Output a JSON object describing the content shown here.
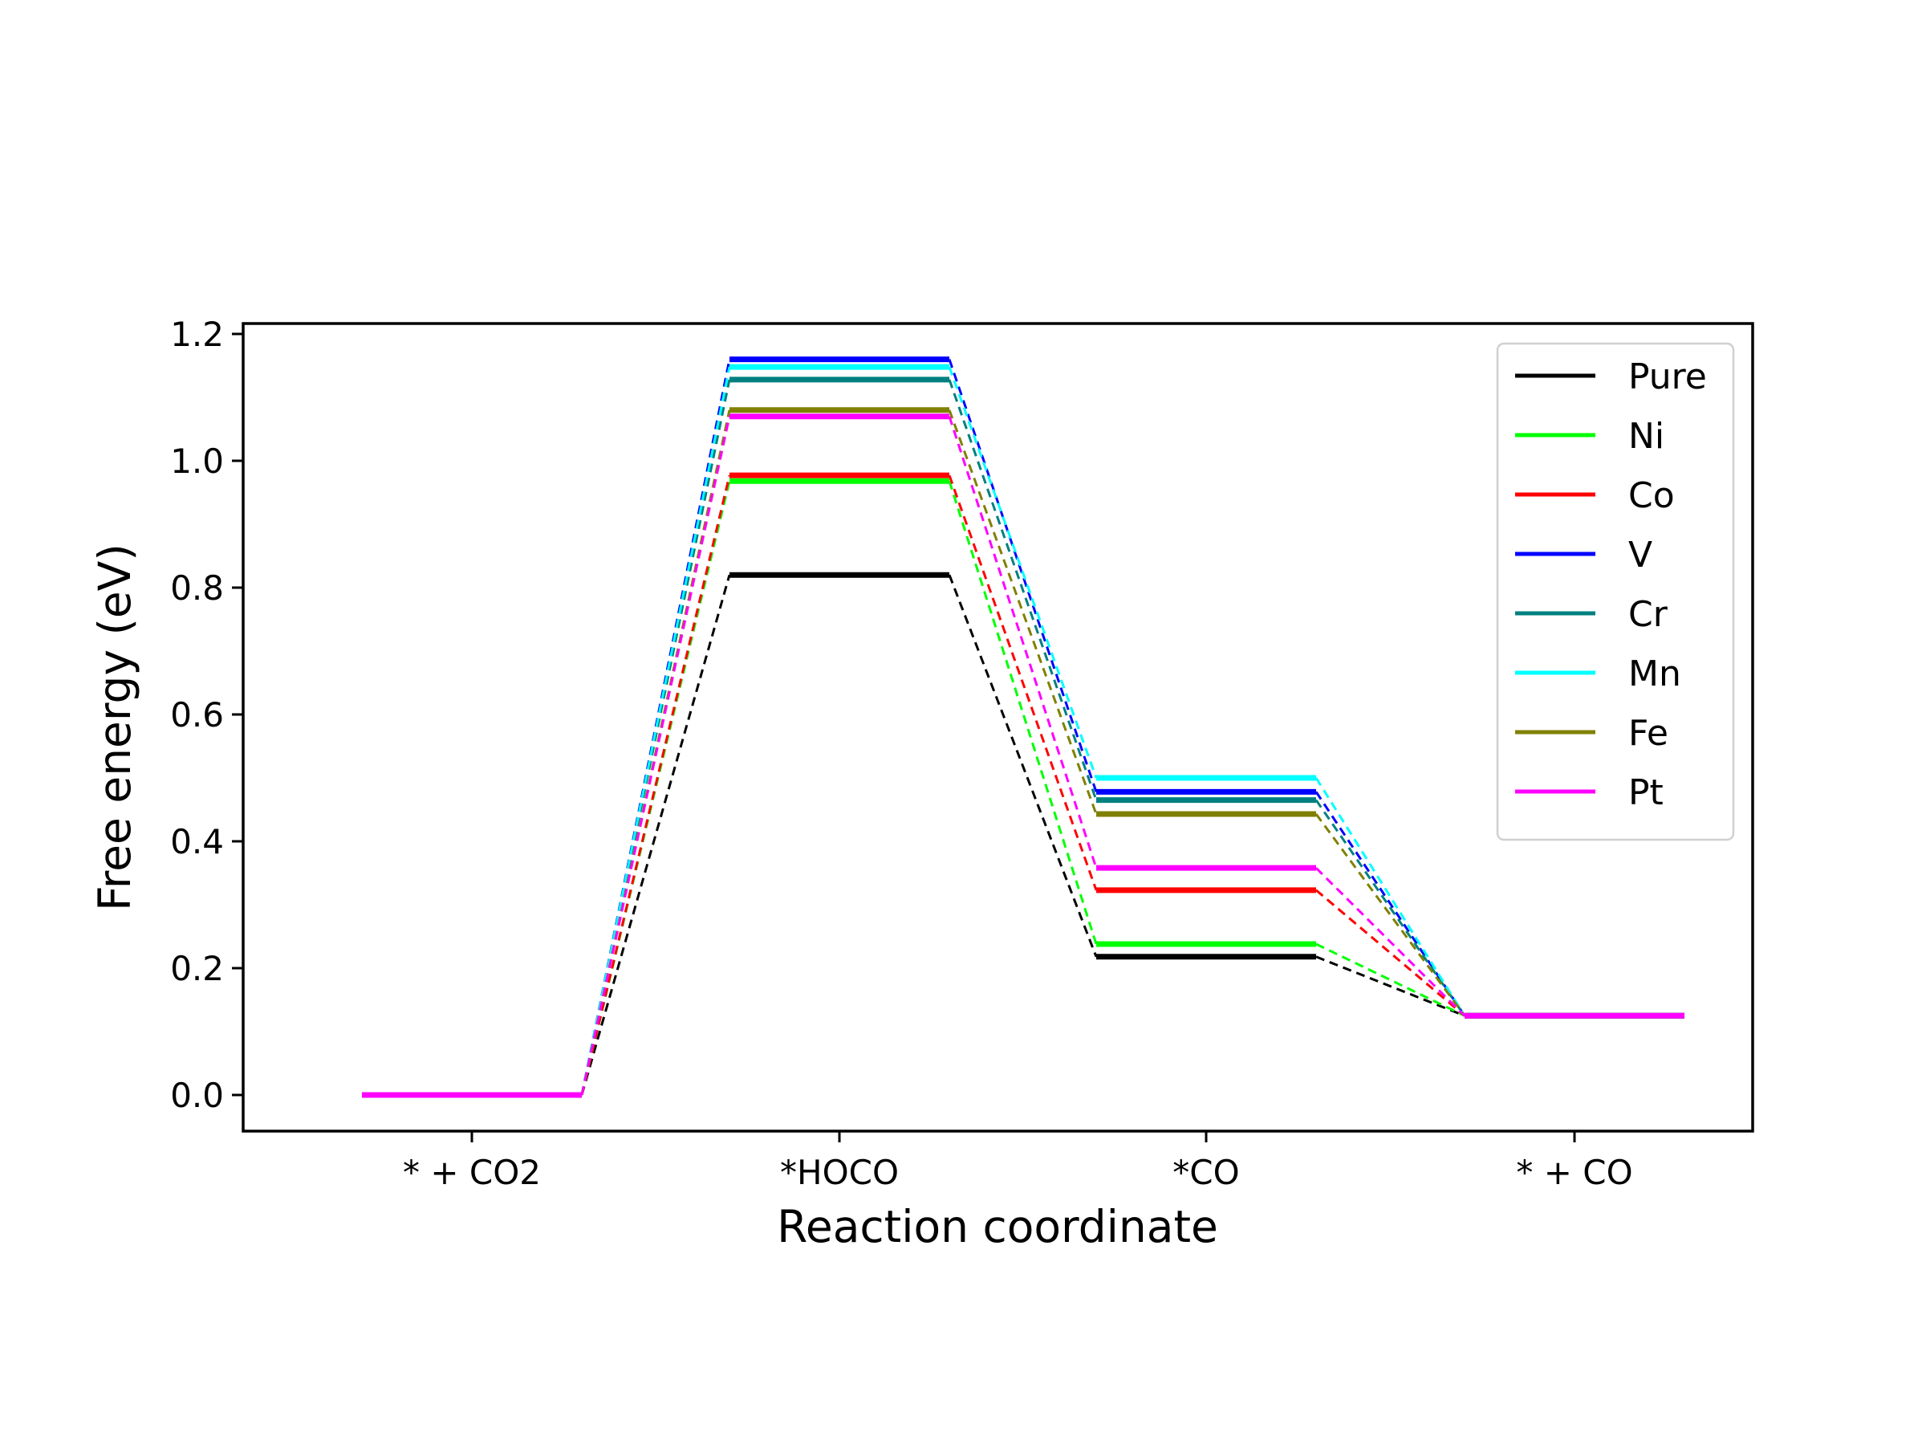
{
  "chart_data": {
    "type": "line",
    "title": "",
    "xlabel": "Reaction coordinate",
    "ylabel": "Free energy (eV)",
    "categories": [
      "* + CO2",
      "*HOCO",
      "*CO",
      "* + CO"
    ],
    "ylim": [
      -0.05,
      1.22
    ],
    "yticks": [
      "0.0",
      "0.2",
      "0.4",
      "0.6",
      "0.8",
      "1.0",
      "1.2"
    ],
    "grid": false,
    "legend_position": "top-right",
    "style": "energy-profile: solid level segments per step, dashed connectors between steps",
    "series": [
      {
        "name": "Pure",
        "color": "#000000",
        "values": [
          0.0,
          0.82,
          0.218,
          0.125
        ]
      },
      {
        "name": "Ni",
        "color": "#00ff00",
        "values": [
          0.0,
          0.968,
          0.238,
          0.125
        ]
      },
      {
        "name": "Co",
        "color": "#ff0000",
        "values": [
          0.0,
          0.977,
          0.323,
          0.125
        ]
      },
      {
        "name": "V",
        "color": "#0000ff",
        "values": [
          0.0,
          1.16,
          0.478,
          0.125
        ]
      },
      {
        "name": "Cr",
        "color": "#008080",
        "values": [
          0.0,
          1.128,
          0.465,
          0.125
        ]
      },
      {
        "name": "Mn",
        "color": "#00ffff",
        "values": [
          0.0,
          1.148,
          0.5,
          0.125
        ]
      },
      {
        "name": "Fe",
        "color": "#808000",
        "values": [
          0.0,
          1.08,
          0.443,
          0.125
        ]
      },
      {
        "name": "Pt",
        "color": "#ff00ff",
        "values": [
          0.0,
          1.07,
          0.358,
          0.125
        ]
      }
    ]
  }
}
